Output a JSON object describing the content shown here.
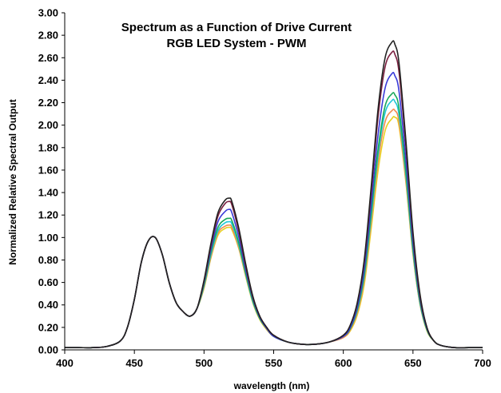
{
  "chart_data": {
    "type": "line",
    "title": "Spectrum as a Function of Drive Current",
    "subtitle": "RGB LED System - PWM",
    "xlabel": "wavelength (nm)",
    "ylabel": "Normalized Relative Spectral Output",
    "xlim": [
      400,
      700
    ],
    "ylim": [
      0,
      3.0
    ],
    "x_ticks": [
      "400",
      "450",
      "500",
      "550",
      "600",
      "650",
      "700"
    ],
    "y_ticks": [
      "0.00",
      "0.20",
      "0.40",
      "0.60",
      "0.80",
      "1.00",
      "1.20",
      "1.40",
      "1.60",
      "1.80",
      "2.00",
      "2.20",
      "2.40",
      "2.60",
      "2.80",
      "3.00"
    ],
    "grid": false,
    "legend": "none",
    "x": [
      400,
      410,
      420,
      430,
      440,
      445,
      450,
      455,
      460,
      465,
      470,
      475,
      480,
      485,
      490,
      495,
      500,
      505,
      510,
      515,
      518,
      520,
      525,
      530,
      535,
      540,
      545,
      550,
      560,
      570,
      580,
      590,
      600,
      605,
      610,
      615,
      620,
      625,
      630,
      635,
      637,
      640,
      645,
      650,
      655,
      660,
      665,
      670,
      680,
      690,
      700
    ],
    "series": [
      {
        "color": "#222222",
        "values": [
          0.02,
          0.02,
          0.02,
          0.03,
          0.08,
          0.2,
          0.45,
          0.78,
          0.97,
          1.0,
          0.85,
          0.6,
          0.42,
          0.34,
          0.3,
          0.37,
          0.62,
          0.95,
          1.22,
          1.33,
          1.35,
          1.32,
          1.08,
          0.76,
          0.48,
          0.3,
          0.2,
          0.13,
          0.07,
          0.05,
          0.05,
          0.07,
          0.13,
          0.22,
          0.42,
          0.8,
          1.45,
          2.15,
          2.6,
          2.74,
          2.72,
          2.55,
          1.85,
          1.05,
          0.5,
          0.2,
          0.08,
          0.04,
          0.02,
          0.02,
          0.02
        ]
      },
      {
        "color": "#7a2040",
        "values": [
          0.02,
          0.02,
          0.02,
          0.03,
          0.08,
          0.2,
          0.45,
          0.78,
          0.97,
          1.0,
          0.85,
          0.6,
          0.42,
          0.34,
          0.3,
          0.37,
          0.61,
          0.93,
          1.19,
          1.3,
          1.32,
          1.29,
          1.05,
          0.74,
          0.47,
          0.3,
          0.2,
          0.13,
          0.07,
          0.05,
          0.05,
          0.07,
          0.13,
          0.22,
          0.41,
          0.78,
          1.4,
          2.08,
          2.52,
          2.65,
          2.63,
          2.47,
          1.8,
          1.02,
          0.48,
          0.2,
          0.08,
          0.04,
          0.02,
          0.02,
          0.02
        ]
      },
      {
        "color": "#3a3ad8",
        "values": [
          0.02,
          0.02,
          0.02,
          0.03,
          0.08,
          0.2,
          0.45,
          0.78,
          0.97,
          1.0,
          0.85,
          0.6,
          0.42,
          0.34,
          0.3,
          0.37,
          0.6,
          0.9,
          1.14,
          1.23,
          1.25,
          1.22,
          1.0,
          0.71,
          0.46,
          0.29,
          0.19,
          0.12,
          0.07,
          0.05,
          0.05,
          0.07,
          0.12,
          0.2,
          0.38,
          0.72,
          1.3,
          1.92,
          2.33,
          2.46,
          2.44,
          2.3,
          1.68,
          0.96,
          0.46,
          0.19,
          0.08,
          0.04,
          0.02,
          0.02,
          0.02
        ]
      },
      {
        "color": "#1aa85a",
        "values": [
          0.02,
          0.02,
          0.02,
          0.03,
          0.08,
          0.2,
          0.45,
          0.78,
          0.97,
          1.0,
          0.85,
          0.6,
          0.42,
          0.34,
          0.3,
          0.37,
          0.58,
          0.87,
          1.09,
          1.16,
          1.17,
          1.15,
          0.95,
          0.68,
          0.44,
          0.28,
          0.19,
          0.12,
          0.07,
          0.05,
          0.05,
          0.07,
          0.12,
          0.19,
          0.36,
          0.67,
          1.22,
          1.79,
          2.17,
          2.28,
          2.27,
          2.15,
          1.58,
          0.9,
          0.43,
          0.18,
          0.08,
          0.04,
          0.02,
          0.02,
          0.02
        ]
      },
      {
        "color": "#22c8d8",
        "values": [
          0.02,
          0.02,
          0.02,
          0.03,
          0.08,
          0.2,
          0.45,
          0.78,
          0.97,
          1.0,
          0.85,
          0.6,
          0.42,
          0.34,
          0.3,
          0.37,
          0.57,
          0.85,
          1.06,
          1.13,
          1.14,
          1.12,
          0.93,
          0.67,
          0.43,
          0.28,
          0.19,
          0.12,
          0.07,
          0.05,
          0.05,
          0.07,
          0.12,
          0.19,
          0.35,
          0.65,
          1.18,
          1.74,
          2.11,
          2.22,
          2.21,
          2.09,
          1.54,
          0.88,
          0.42,
          0.18,
          0.08,
          0.04,
          0.02,
          0.02,
          0.02
        ]
      },
      {
        "color": "#f08a50",
        "values": [
          0.02,
          0.02,
          0.02,
          0.03,
          0.08,
          0.2,
          0.45,
          0.78,
          0.97,
          1.0,
          0.85,
          0.6,
          0.42,
          0.34,
          0.3,
          0.37,
          0.56,
          0.83,
          1.04,
          1.1,
          1.11,
          1.09,
          0.91,
          0.66,
          0.43,
          0.28,
          0.19,
          0.12,
          0.07,
          0.05,
          0.05,
          0.07,
          0.11,
          0.18,
          0.33,
          0.62,
          1.14,
          1.68,
          2.03,
          2.13,
          2.13,
          2.03,
          1.5,
          0.86,
          0.41,
          0.18,
          0.08,
          0.04,
          0.02,
          0.02,
          0.02
        ]
      },
      {
        "color": "#e8d020",
        "values": [
          0.02,
          0.02,
          0.02,
          0.03,
          0.08,
          0.2,
          0.45,
          0.78,
          0.97,
          1.0,
          0.85,
          0.6,
          0.42,
          0.34,
          0.3,
          0.37,
          0.55,
          0.82,
          1.02,
          1.08,
          1.09,
          1.07,
          0.9,
          0.65,
          0.42,
          0.27,
          0.18,
          0.12,
          0.07,
          0.05,
          0.05,
          0.07,
          0.11,
          0.17,
          0.31,
          0.58,
          1.08,
          1.6,
          1.95,
          2.06,
          2.07,
          1.99,
          1.48,
          0.85,
          0.41,
          0.17,
          0.08,
          0.04,
          0.02,
          0.02,
          0.02
        ]
      }
    ]
  }
}
